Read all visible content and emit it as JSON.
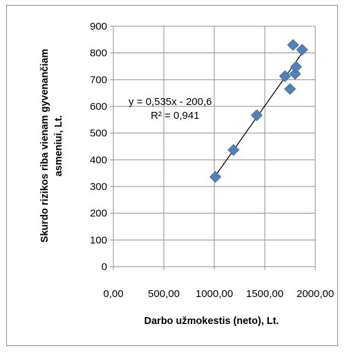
{
  "chart_data": {
    "type": "scatter",
    "xlabel": "Darbo užmokestis (neto), Lt.",
    "ylabel_lines": [
      "Skurdo rizikos riba vienam gyvenančiam",
      "asmeniui, Lt."
    ],
    "xlim": [
      0,
      2000
    ],
    "ylim": [
      0,
      900
    ],
    "x_ticks": [
      0,
      500,
      1000,
      1500,
      2000
    ],
    "x_tick_labels": [
      "0,00",
      "500,00",
      "1000,00",
      "1500,00",
      "2000,00"
    ],
    "y_ticks": [
      0,
      100,
      200,
      300,
      400,
      500,
      600,
      700,
      800,
      900
    ],
    "y_tick_labels": [
      "0",
      "100",
      "200",
      "300",
      "400",
      "500",
      "600",
      "700",
      "800",
      "900"
    ],
    "grid": "vertical and horizontal major gridlines",
    "marker_color": "#4f81bd",
    "marker_edge_color": "#3a6aa5",
    "points": [
      {
        "x": 1010,
        "y": 336
      },
      {
        "x": 1190,
        "y": 437
      },
      {
        "x": 1420,
        "y": 567
      },
      {
        "x": 1700,
        "y": 713
      },
      {
        "x": 1750,
        "y": 665
      },
      {
        "x": 1780,
        "y": 830
      },
      {
        "x": 1800,
        "y": 722
      },
      {
        "x": 1810,
        "y": 748
      },
      {
        "x": 1870,
        "y": 812
      }
    ],
    "trendline": {
      "x": [
        1010,
        1870
      ],
      "y": [
        339.75,
        799.85
      ],
      "color": "#000000"
    },
    "annotation": {
      "equation": "y = 0,535x - 200,6",
      "r_squared": "R² = 0,941"
    }
  }
}
